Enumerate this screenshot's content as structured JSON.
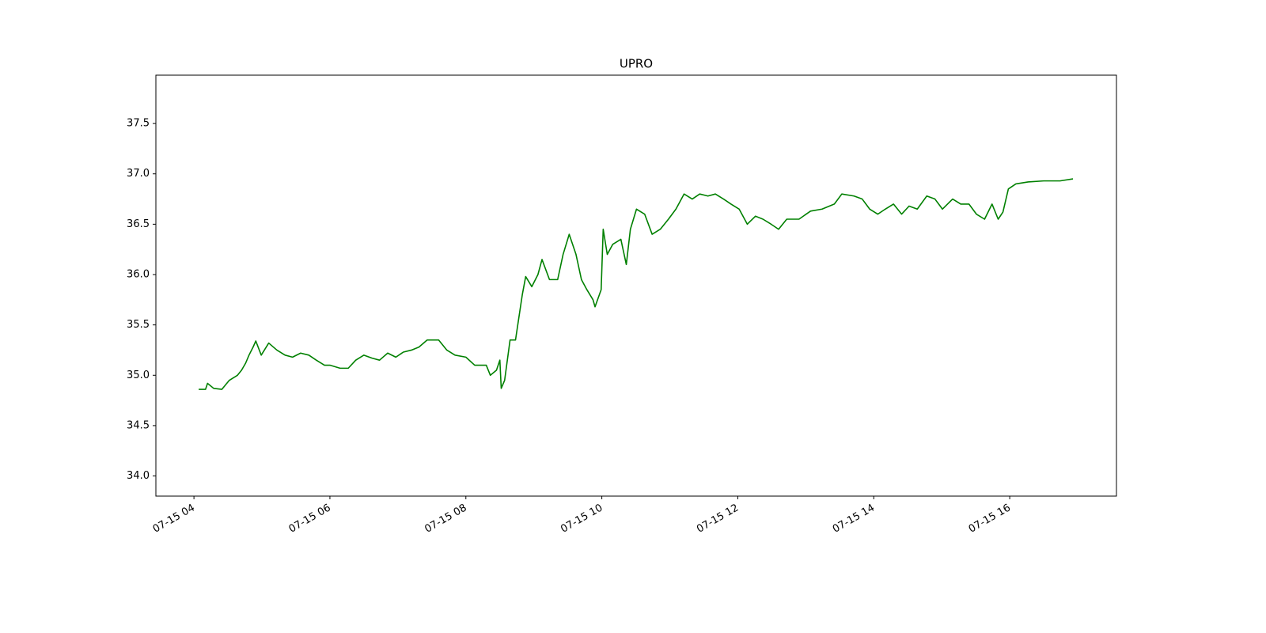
{
  "chart_data": {
    "type": "line",
    "title": "UPRO",
    "x": [
      4.07,
      4.17,
      4.2,
      4.29,
      4.41,
      4.52,
      4.64,
      4.7,
      4.76,
      4.81,
      4.87,
      4.91,
      4.99,
      5.1,
      5.22,
      5.34,
      5.45,
      5.57,
      5.69,
      5.8,
      5.92,
      6.0,
      6.15,
      6.27,
      6.38,
      6.5,
      6.62,
      6.73,
      6.85,
      6.97,
      7.08,
      7.2,
      7.31,
      7.43,
      7.6,
      7.72,
      7.84,
      8.0,
      8.13,
      8.3,
      8.36,
      8.45,
      8.5,
      8.52,
      8.57,
      8.65,
      8.73,
      8.83,
      8.88,
      8.97,
      9.06,
      9.12,
      9.23,
      9.35,
      9.43,
      9.52,
      9.62,
      9.7,
      9.78,
      9.87,
      9.9,
      9.99,
      10.02,
      10.08,
      10.16,
      10.28,
      10.36,
      10.42,
      10.51,
      10.63,
      10.74,
      10.86,
      10.98,
      11.09,
      11.21,
      11.33,
      11.44,
      11.56,
      11.67,
      11.79,
      11.9,
      12.02,
      12.14,
      12.26,
      12.37,
      12.49,
      12.6,
      12.72,
      12.9,
      13.07,
      13.24,
      13.42,
      13.53,
      13.71,
      13.83,
      13.94,
      14.06,
      14.17,
      14.29,
      14.41,
      14.52,
      14.64,
      14.78,
      14.9,
      15.01,
      15.16,
      15.28,
      15.4,
      15.51,
      15.63,
      15.74,
      15.83,
      15.9,
      15.98,
      16.09,
      16.27,
      16.5,
      16.74,
      16.93
    ],
    "series": [
      {
        "color": "#008000",
        "values": [
          34.86,
          34.86,
          34.92,
          34.87,
          34.86,
          34.95,
          35.0,
          35.05,
          35.12,
          35.2,
          35.28,
          35.34,
          35.2,
          35.32,
          35.25,
          35.2,
          35.18,
          35.22,
          35.2,
          35.15,
          35.1,
          35.1,
          35.07,
          35.07,
          35.15,
          35.2,
          35.17,
          35.15,
          35.22,
          35.18,
          35.23,
          35.25,
          35.28,
          35.35,
          35.35,
          35.25,
          35.2,
          35.18,
          35.1,
          35.1,
          35.0,
          35.05,
          35.15,
          34.87,
          34.95,
          35.35,
          35.35,
          35.8,
          35.98,
          35.88,
          36.0,
          36.15,
          35.95,
          35.95,
          36.2,
          36.4,
          36.2,
          35.95,
          35.85,
          35.75,
          35.68,
          35.85,
          36.45,
          36.2,
          36.3,
          36.35,
          36.1,
          36.45,
          36.65,
          36.6,
          36.4,
          36.45,
          36.55,
          36.65,
          36.8,
          36.75,
          36.8,
          36.78,
          36.8,
          36.75,
          36.7,
          36.65,
          36.5,
          36.58,
          36.55,
          36.5,
          36.45,
          36.55,
          36.55,
          36.63,
          36.65,
          36.7,
          36.8,
          36.78,
          36.75,
          36.65,
          36.6,
          36.65,
          36.7,
          36.6,
          36.68,
          36.65,
          36.78,
          36.75,
          36.65,
          36.75,
          36.7,
          36.7,
          36.6,
          36.55,
          36.7,
          36.55,
          36.62,
          36.85,
          36.9,
          36.92,
          36.93,
          36.93,
          36.95
        ]
      }
    ],
    "xlim": [
      3.44,
      17.57
    ],
    "xticks": [
      {
        "value": 4,
        "label": "07-15 04"
      },
      {
        "value": 6,
        "label": "07-15 06"
      },
      {
        "value": 8,
        "label": "07-15 08"
      },
      {
        "value": 10,
        "label": "07-15 10"
      },
      {
        "value": 12,
        "label": "07-15 12"
      },
      {
        "value": 14,
        "label": "07-15 14"
      },
      {
        "value": 16,
        "label": "07-15 16"
      }
    ],
    "ylim": [
      33.8,
      37.98
    ],
    "yticks": [
      {
        "value": 34,
        "label": "34.0"
      },
      34.5,
      {
        "value": 35,
        "label": "35.0"
      },
      35.5,
      {
        "value": 36,
        "label": "36.0"
      },
      36.5,
      {
        "value": 37,
        "label": "37.0"
      },
      37.5
    ],
    "grid": false
  }
}
